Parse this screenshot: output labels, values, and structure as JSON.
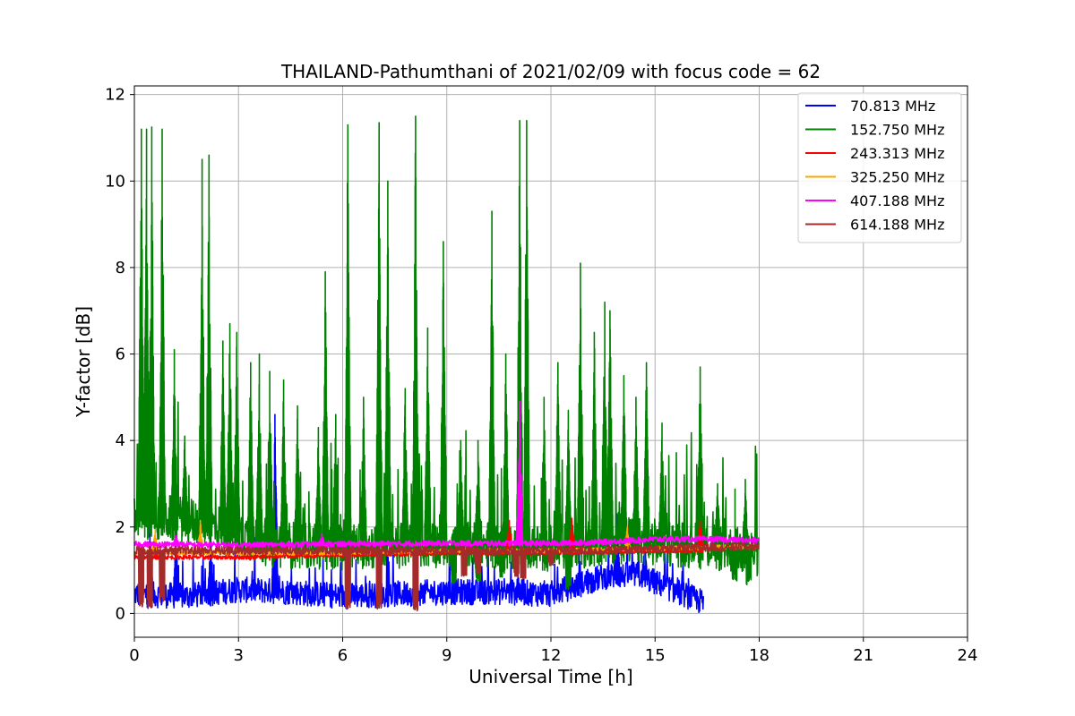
{
  "chart_data": {
    "type": "line",
    "title": "THAILAND-Pathumthani of 2021/02/09 with focus code = 62",
    "xlabel": "Universal Time [h]",
    "ylabel": "Y-factor [dB]",
    "xlim": [
      0,
      24
    ],
    "ylim": [
      -0.55,
      12.2
    ],
    "xticks": [
      0,
      3,
      6,
      9,
      12,
      15,
      18,
      21,
      24
    ],
    "yticks": [
      0,
      2,
      4,
      6,
      8,
      10,
      12
    ],
    "grid": true,
    "legend_position": "top-right",
    "series": [
      {
        "name": " 70.813 MHz",
        "color": "#0000ff",
        "x_end": 16.4,
        "base": [
          [
            0,
            0.45
          ],
          [
            1.5,
            0.4
          ],
          [
            3,
            0.55
          ],
          [
            4.5,
            0.5
          ],
          [
            6,
            0.4
          ],
          [
            7.5,
            0.45
          ],
          [
            9,
            0.5
          ],
          [
            10.5,
            0.5
          ],
          [
            12,
            0.45
          ],
          [
            13.5,
            0.85
          ],
          [
            14.5,
            0.9
          ],
          [
            15.5,
            0.55
          ],
          [
            16.4,
            0.25
          ]
        ],
        "spread": 0.3,
        "spikes": [
          [
            0.45,
            2.1
          ],
          [
            1.2,
            1.7
          ],
          [
            2.2,
            1.8
          ],
          [
            4.05,
            4.6
          ],
          [
            11.05,
            0.9
          ],
          [
            13.9,
            2.3
          ],
          [
            14.7,
            1.6
          ]
        ]
      },
      {
        "name": "152.750 MHz",
        "color": "#008000",
        "x_end": 18.0,
        "base": [
          [
            0,
            2.3
          ],
          [
            2,
            2.1
          ],
          [
            4,
            1.6
          ],
          [
            6,
            1.55
          ],
          [
            8,
            1.6
          ],
          [
            10,
            1.6
          ],
          [
            12,
            1.5
          ],
          [
            14,
            1.7
          ],
          [
            16,
            1.6
          ],
          [
            17,
            1.5
          ],
          [
            18,
            1.4
          ]
        ],
        "spread": 0.55,
        "spikes": [
          [
            0.2,
            11.2
          ],
          [
            0.35,
            11.2
          ],
          [
            0.5,
            11.25
          ],
          [
            0.8,
            11.2
          ],
          [
            1.15,
            6.1
          ],
          [
            1.45,
            4.1
          ],
          [
            1.95,
            10.5
          ],
          [
            2.15,
            10.6
          ],
          [
            2.55,
            6.3
          ],
          [
            2.75,
            6.7
          ],
          [
            2.95,
            6.5
          ],
          [
            3.35,
            5.8
          ],
          [
            3.6,
            6.0
          ],
          [
            3.9,
            5.6
          ],
          [
            4.3,
            5.4
          ],
          [
            4.7,
            4.8
          ],
          [
            5.3,
            4.3
          ],
          [
            5.5,
            7.9
          ],
          [
            5.8,
            4.6
          ],
          [
            6.15,
            11.3
          ],
          [
            6.6,
            5.0
          ],
          [
            7.05,
            11.35
          ],
          [
            7.3,
            10.0
          ],
          [
            7.8,
            5.2
          ],
          [
            8.1,
            11.5
          ],
          [
            8.45,
            6.6
          ],
          [
            8.9,
            8.6
          ],
          [
            9.4,
            4.0
          ],
          [
            9.9,
            4.0
          ],
          [
            10.3,
            9.3
          ],
          [
            10.7,
            6.0
          ],
          [
            11.1,
            11.4
          ],
          [
            11.3,
            11.4
          ],
          [
            11.8,
            5.0
          ],
          [
            12.2,
            5.8
          ],
          [
            12.5,
            4.7
          ],
          [
            12.85,
            8.1
          ],
          [
            13.25,
            6.5
          ],
          [
            13.55,
            7.2
          ],
          [
            13.7,
            7.0
          ],
          [
            14.1,
            5.5
          ],
          [
            14.45,
            5.0
          ],
          [
            14.75,
            5.8
          ],
          [
            15.2,
            4.4
          ],
          [
            16.3,
            5.7
          ],
          [
            16.8,
            3.0
          ],
          [
            17.6,
            3.1
          ]
        ],
        "dips": [
          [
            9.2,
            0.7
          ],
          [
            9.9,
            0.75
          ],
          [
            10.6,
            0.8
          ],
          [
            11.2,
            0.9
          ],
          [
            12.5,
            0.55
          ],
          [
            17.3,
            0.75
          ],
          [
            17.7,
            0.65
          ]
        ]
      },
      {
        "name": "243.313 MHz",
        "color": "#ff0000",
        "x_end": 16.4,
        "base": [
          [
            0,
            1.3
          ],
          [
            3,
            1.3
          ],
          [
            6,
            1.35
          ],
          [
            9,
            1.4
          ],
          [
            12,
            1.4
          ],
          [
            15,
            1.45
          ],
          [
            16.4,
            1.45
          ]
        ],
        "spread": 0.05,
        "spikes": [
          [
            10.8,
            2.15
          ],
          [
            12.6,
            2.2
          ],
          [
            16.3,
            2.15
          ]
        ]
      },
      {
        "name": "325.250 MHz",
        "color": "#ffa500",
        "x_end": 18.0,
        "base": [
          [
            0,
            1.4
          ],
          [
            3,
            1.4
          ],
          [
            6,
            1.4
          ],
          [
            9,
            1.45
          ],
          [
            12,
            1.45
          ],
          [
            15,
            1.5
          ],
          [
            18,
            1.55
          ]
        ],
        "spread": 0.05,
        "spikes": [
          [
            0.6,
            1.95
          ],
          [
            1.9,
            2.15
          ],
          [
            14.2,
            2.0
          ]
        ]
      },
      {
        "name": "407.188 MHz",
        "color": "#ff00ff",
        "x_end": 18.0,
        "base": [
          [
            0,
            1.6
          ],
          [
            3,
            1.58
          ],
          [
            6,
            1.6
          ],
          [
            9,
            1.62
          ],
          [
            12,
            1.62
          ],
          [
            13.5,
            1.65
          ],
          [
            15,
            1.72
          ],
          [
            16.5,
            1.72
          ],
          [
            18,
            1.68
          ]
        ],
        "spread": 0.07,
        "spikes": [
          [
            11.1,
            4.9
          ],
          [
            1.2,
            1.8
          ],
          [
            5.4,
            1.85
          ]
        ]
      },
      {
        "name": "614.188 MHz",
        "color": "#a52a2a",
        "x_end": 18.0,
        "base": [
          [
            0,
            1.45
          ],
          [
            3,
            1.45
          ],
          [
            6,
            1.45
          ],
          [
            9,
            1.45
          ],
          [
            12,
            1.45
          ],
          [
            13.5,
            1.45
          ],
          [
            15,
            1.5
          ],
          [
            18,
            1.55
          ]
        ],
        "spread": 0.1,
        "dips": [
          [
            0.2,
            0.15
          ],
          [
            0.45,
            0.1
          ],
          [
            0.8,
            0.25
          ],
          [
            6.15,
            0.1
          ],
          [
            7.05,
            0.1
          ],
          [
            8.1,
            0.05
          ],
          [
            9.5,
            0.85
          ],
          [
            9.9,
            0.9
          ],
          [
            11.0,
            0.85
          ],
          [
            11.2,
            0.8
          ],
          [
            12.0,
            1.1
          ]
        ]
      }
    ]
  }
}
